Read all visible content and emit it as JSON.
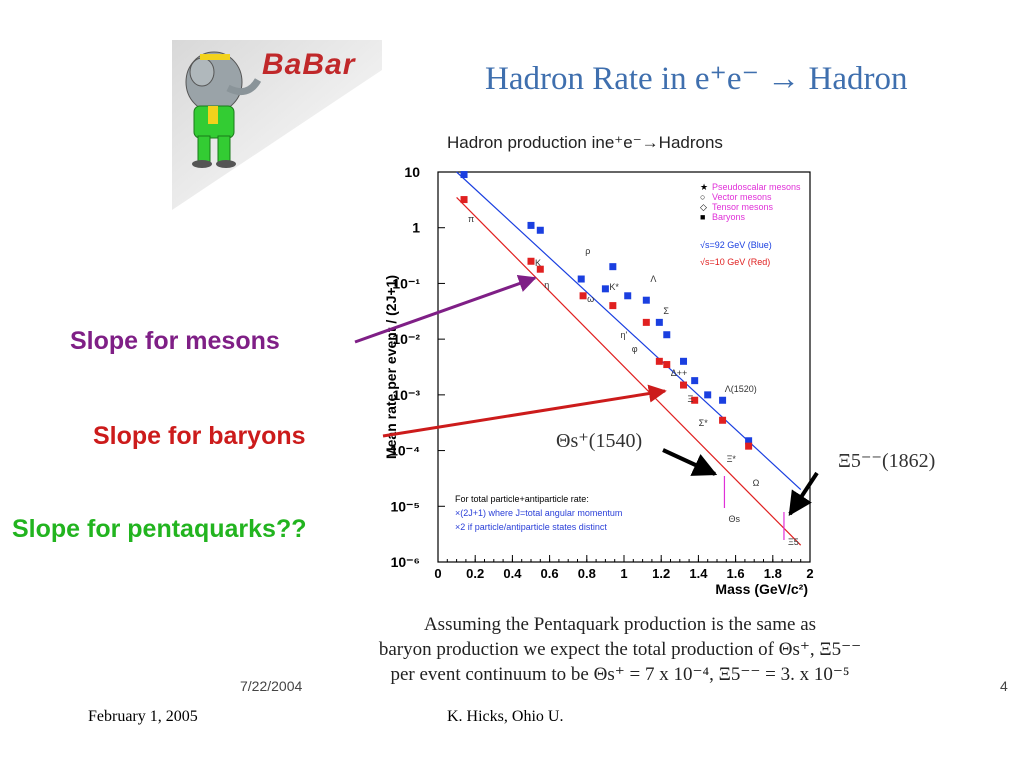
{
  "slide": {
    "title": "Hadron Rate in e⁺e⁻ → Hadron",
    "logo_text": "BaBar",
    "callouts": {
      "mesons": "Slope for mesons",
      "baryons": "Slope for baryons",
      "pentaquarks": "Slope for pentaquarks??"
    },
    "theta_label": "Θs⁺(1540)",
    "xi_label": "Ξ5⁻⁻(1862)",
    "note_line1": "Assuming the Pentaquark production is the same as",
    "note_line2": "baryon production we expect the total production of Θs⁺, Ξ5⁻⁻",
    "note_line3": "per event continuum to be  Θs⁺ = 7 x 10⁻⁴,  Ξ5⁻⁻ = 3. x 10⁻⁵",
    "inner_date": "7/22/2004",
    "page_number": "4",
    "footer_date": "February 1, 2005",
    "footer_author": "K. Hicks, Ohio U.",
    "colors": {
      "title": "#3f6fae",
      "mesons": "#7f1f86",
      "baryons": "#cc1b1b",
      "pentaquarks": "#22b41f",
      "blue_series": "#1a3fe0",
      "red_series": "#e02020"
    }
  },
  "chart_data": {
    "type": "scatter",
    "title": "Hadron production ine⁺e⁻→Hadrons",
    "xlabel": "Mass (GeV/c²)",
    "ylabel": "Mean rate per event / (2J+1)",
    "xlim": [
      0,
      2
    ],
    "ylim": [
      -6,
      1
    ],
    "y_scale": "log",
    "x_ticks": [
      "0",
      "0.2",
      "0.4",
      "0.6",
      "0.8",
      "1",
      "1.2",
      "1.4",
      "1.6",
      "1.8",
      "2"
    ],
    "y_ticks": [
      "10",
      "1",
      "10⁻¹",
      "10⁻²",
      "10⁻³",
      "10⁻⁴",
      "10⁻⁵",
      "10⁻⁶"
    ],
    "legend": [
      "Pseudoscalar mesons",
      "Vector mesons",
      "Tensor mesons",
      "Baryons"
    ],
    "legend_energy": [
      "√s=92 GeV (Blue)",
      "√s=10 GeV (Red)"
    ],
    "footnote": [
      "For total particle+antiparticle rate:",
      "×(2J+1)   where J=total angular momentum",
      "×2   if particle/antiparticle states distinct"
    ],
    "series": [
      {
        "name": "√s=92 GeV (Blue)",
        "points": [
          {
            "x": 0.14,
            "y": 9
          },
          {
            "x": 0.5,
            "y": 1.1
          },
          {
            "x": 0.55,
            "y": 0.9
          },
          {
            "x": 0.77,
            "y": 0.12
          },
          {
            "x": 0.9,
            "y": 0.08
          },
          {
            "x": 0.94,
            "y": 0.2
          },
          {
            "x": 1.02,
            "y": 0.06
          },
          {
            "x": 1.12,
            "y": 0.05
          },
          {
            "x": 1.19,
            "y": 0.02
          },
          {
            "x": 1.23,
            "y": 0.012
          },
          {
            "x": 1.32,
            "y": 0.004
          },
          {
            "x": 1.38,
            "y": 0.0018
          },
          {
            "x": 1.45,
            "y": 0.001
          },
          {
            "x": 1.53,
            "y": 0.0008
          },
          {
            "x": 1.67,
            "y": 0.00015
          }
        ],
        "fit_line": {
          "x": [
            0.1,
            1.95
          ],
          "y": [
            10,
            2e-05
          ]
        }
      },
      {
        "name": "√s=10 GeV (Red)",
        "points": [
          {
            "x": 0.14,
            "y": 3.2
          },
          {
            "x": 0.5,
            "y": 0.25
          },
          {
            "x": 0.55,
            "y": 0.18
          },
          {
            "x": 0.78,
            "y": 0.06
          },
          {
            "x": 0.94,
            "y": 0.04
          },
          {
            "x": 1.12,
            "y": 0.02
          },
          {
            "x": 1.19,
            "y": 0.004
          },
          {
            "x": 1.23,
            "y": 0.0035
          },
          {
            "x": 1.32,
            "y": 0.0015
          },
          {
            "x": 1.38,
            "y": 0.0008
          },
          {
            "x": 1.53,
            "y": 0.00035
          },
          {
            "x": 1.67,
            "y": 0.00012
          }
        ],
        "fit_line": {
          "x": [
            0.1,
            1.95
          ],
          "y": [
            3.5,
            2e-06
          ]
        }
      }
    ],
    "annotations": [
      {
        "text": "π",
        "x": 0.14
      },
      {
        "text": "K",
        "x": 0.5
      },
      {
        "text": "η",
        "x": 0.55
      },
      {
        "text": "ρ",
        "x": 0.77
      },
      {
        "text": "ω",
        "x": 0.78
      },
      {
        "text": "K*",
        "x": 0.9
      },
      {
        "text": "η'",
        "x": 0.96
      },
      {
        "text": "φ",
        "x": 1.02
      },
      {
        "text": "Λ",
        "x": 1.12
      },
      {
        "text": "Σ",
        "x": 1.19
      },
      {
        "text": "Δ++",
        "x": 1.23
      },
      {
        "text": "Ξ",
        "x": 1.32
      },
      {
        "text": "Σ*",
        "x": 1.38
      },
      {
        "text": "Ξ*",
        "x": 1.53
      },
      {
        "text": "Λ(1520)",
        "x": 1.52
      },
      {
        "text": "Ω",
        "x": 1.67
      },
      {
        "text": "Θs",
        "x": 1.54
      },
      {
        "text": "Ξ5",
        "x": 1.86
      }
    ],
    "legend_position": "top-right",
    "grid": false
  }
}
